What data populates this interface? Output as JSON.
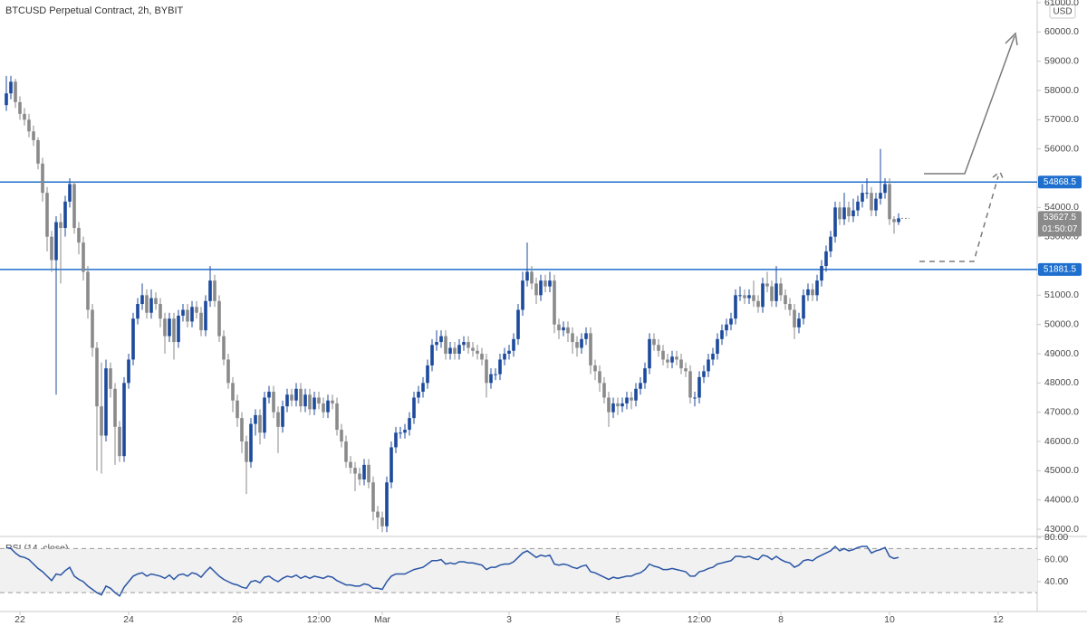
{
  "chart_data": [
    {
      "type": "candlestick",
      "title": "BTCUSD Perpetual Contract, 2h, BYBIT",
      "currency": "USD",
      "up_color": "#1c4a9c",
      "down_color": "#8a8a8a",
      "open": [
        57500,
        57900,
        58300,
        57600,
        57200,
        57000,
        56600,
        56300,
        55500,
        54500,
        53000,
        52200,
        53500,
        53300,
        54200,
        54800,
        53300,
        52800,
        51800,
        50500,
        49200,
        47200,
        46200,
        48500,
        47800,
        46500,
        45500,
        48000,
        48800,
        50200,
        50700,
        51000,
        50400,
        50900,
        50700,
        50200,
        49600,
        50200,
        49400,
        50300,
        50500,
        50100,
        50600,
        50400,
        49800,
        50800,
        51500,
        50800,
        49600,
        48800,
        48000,
        47400,
        46800,
        46000,
        45300,
        46600,
        46900,
        46300,
        47500,
        47700,
        47000,
        46500,
        47200,
        47600,
        47400,
        47800,
        47200,
        47600,
        47100,
        47500,
        47300,
        47000,
        47400,
        47300,
        46400,
        46000,
        45300,
        45100,
        44900,
        44700,
        45200,
        44600,
        43600,
        43400,
        43100,
        44600,
        45800,
        46300,
        46300,
        46400,
        46800,
        47500,
        47700,
        48000,
        48600,
        49300,
        49400,
        49600,
        49000,
        49200,
        49000,
        49300,
        49400,
        49200,
        49100,
        49000,
        48800,
        48000,
        48300,
        48300,
        48800,
        49000,
        49100,
        49500,
        50500,
        51500,
        51800,
        51400,
        51000,
        51500,
        51300,
        51500,
        50000,
        49800,
        49900,
        49700,
        49400,
        49200,
        49500,
        49700,
        48600,
        48400,
        48000,
        47500,
        47000,
        47300,
        47200,
        47300,
        47500,
        47400,
        47800,
        48000,
        48500,
        49500,
        49300,
        49100,
        48800,
        48700,
        48900,
        48800,
        48500,
        48400,
        47500,
        47500,
        48200,
        48400,
        48800,
        49000,
        49500,
        49800,
        50000,
        50200,
        51000,
        51000,
        50900,
        51000,
        50800,
        50600,
        51400,
        51300,
        50800,
        51400,
        51000,
        50700,
        50500,
        49900,
        50200,
        51000,
        51200,
        51000,
        51500,
        52000,
        52500,
        53000,
        54000,
        53600,
        54000,
        53700,
        53900,
        54200,
        54500,
        54500,
        53900,
        54300,
        54500,
        54800,
        53600,
        53500
      ],
      "high": [
        58500,
        58500,
        58400,
        57800,
        57400,
        57200,
        56800,
        56400,
        55700,
        54700,
        53200,
        53700,
        53800,
        54400,
        55000,
        54900,
        53500,
        53000,
        52000,
        50700,
        49400,
        48700,
        48800,
        48700,
        48000,
        46700,
        48200,
        49000,
        50400,
        50900,
        51400,
        51200,
        51200,
        51100,
        50900,
        50400,
        50400,
        50400,
        50500,
        50700,
        50700,
        50800,
        50800,
        50600,
        51000,
        52000,
        51700,
        51000,
        49800,
        49000,
        48200,
        47600,
        47000,
        46200,
        46800,
        47100,
        47100,
        47700,
        47900,
        47900,
        47200,
        47400,
        47800,
        47800,
        48000,
        48000,
        47800,
        47800,
        47700,
        47700,
        47500,
        47600,
        47600,
        47500,
        46600,
        46200,
        45500,
        45300,
        45100,
        45400,
        45400,
        44800,
        43800,
        43600,
        44800,
        46000,
        46500,
        46500,
        46600,
        47000,
        47700,
        47900,
        48200,
        48800,
        49500,
        49800,
        49800,
        49800,
        49400,
        49400,
        49500,
        49600,
        49600,
        49400,
        49300,
        49200,
        49000,
        48500,
        48500,
        49000,
        49200,
        49300,
        49700,
        50700,
        51800,
        52800,
        52000,
        51600,
        51700,
        51700,
        51800,
        51700,
        50200,
        50100,
        50100,
        49900,
        49600,
        49700,
        49900,
        49900,
        48800,
        48600,
        48200,
        47700,
        47500,
        47500,
        47500,
        47700,
        47700,
        48000,
        48200,
        48700,
        49700,
        49700,
        49500,
        49300,
        49000,
        49100,
        49100,
        49000,
        48700,
        48600,
        47700,
        48400,
        48600,
        49000,
        49200,
        49700,
        50000,
        50200,
        50400,
        51200,
        51300,
        51200,
        51200,
        51500,
        51000,
        51600,
        51800,
        51500,
        52000,
        51600,
        51200,
        50900,
        50700,
        50400,
        51200,
        51400,
        51400,
        51700,
        52200,
        52700,
        53200,
        54200,
        54200,
        54500,
        54200,
        54300,
        54400,
        54800,
        55000,
        54700,
        54500,
        56000,
        55000,
        55000,
        53700,
        53800
      ],
      "low": [
        57300,
        57700,
        57400,
        57000,
        56800,
        56400,
        56100,
        55300,
        54200,
        52500,
        51800,
        47600,
        51400,
        53000,
        54000,
        53100,
        52400,
        51500,
        50200,
        48900,
        45000,
        44900,
        46000,
        47500,
        45200,
        45300,
        45300,
        47800,
        48600,
        50000,
        50500,
        50200,
        50200,
        50500,
        49900,
        49000,
        49400,
        48800,
        49200,
        50100,
        49900,
        49900,
        50200,
        49600,
        49600,
        50600,
        50600,
        49400,
        48600,
        47800,
        47000,
        46500,
        45600,
        44200,
        45100,
        46200,
        45900,
        46100,
        47300,
        46800,
        45600,
        46300,
        47000,
        47200,
        47200,
        47000,
        47000,
        46900,
        46900,
        47100,
        46800,
        46800,
        47100,
        46200,
        45800,
        45100,
        44900,
        44300,
        44500,
        44500,
        44400,
        43300,
        43000,
        42900,
        42900,
        44400,
        45600,
        46100,
        46100,
        46200,
        46600,
        47300,
        47500,
        47800,
        48400,
        49100,
        49200,
        48800,
        48800,
        48800,
        48800,
        49100,
        49000,
        48900,
        48800,
        48600,
        47500,
        47800,
        48100,
        48100,
        48600,
        48800,
        48900,
        49300,
        50300,
        51300,
        51200,
        50700,
        50800,
        51100,
        51100,
        49700,
        49500,
        49600,
        49400,
        49000,
        48900,
        49000,
        49300,
        48300,
        48100,
        47700,
        47300,
        46500,
        46800,
        46900,
        47000,
        47100,
        47100,
        47200,
        47600,
        47800,
        48300,
        49100,
        48900,
        48600,
        48500,
        48500,
        48600,
        48300,
        48200,
        47300,
        47200,
        47300,
        48000,
        48200,
        48600,
        48800,
        49300,
        49600,
        49800,
        50000,
        50800,
        50700,
        50700,
        50600,
        50400,
        50400,
        51100,
        50600,
        50600,
        50800,
        50500,
        50300,
        49500,
        49700,
        50000,
        50800,
        50800,
        50800,
        51300,
        51800,
        52300,
        52800,
        53400,
        53400,
        53500,
        53500,
        53700,
        54000,
        54300,
        53700,
        53700,
        54100,
        54300,
        53400,
        53100,
        53400
      ],
      "close": [
        57900,
        58300,
        57600,
        57200,
        57000,
        56600,
        56300,
        55500,
        54500,
        53000,
        52200,
        53500,
        53300,
        54200,
        54800,
        53300,
        52800,
        51800,
        50500,
        49200,
        47200,
        46200,
        48500,
        47800,
        46500,
        45500,
        48000,
        48800,
        50200,
        50700,
        51000,
        50400,
        50900,
        50700,
        50200,
        49600,
        50200,
        49400,
        50300,
        50500,
        50100,
        50600,
        50400,
        49800,
        50800,
        51500,
        50800,
        49600,
        48800,
        48000,
        47400,
        46800,
        46000,
        45300,
        46600,
        46900,
        46300,
        47500,
        47700,
        47000,
        46500,
        47200,
        47600,
        47400,
        47800,
        47200,
        47600,
        47100,
        47500,
        47300,
        47000,
        47400,
        47300,
        46400,
        46000,
        45300,
        45100,
        44900,
        44700,
        45200,
        44600,
        43600,
        43400,
        43100,
        44600,
        45800,
        46300,
        46300,
        46400,
        46800,
        47500,
        47700,
        48000,
        48600,
        49300,
        49400,
        49600,
        49000,
        49200,
        49000,
        49300,
        49400,
        49200,
        49100,
        49000,
        48800,
        48000,
        48300,
        48300,
        48800,
        49000,
        49100,
        49500,
        50500,
        51500,
        51800,
        51400,
        51000,
        51500,
        51300,
        51500,
        50000,
        49800,
        49900,
        49700,
        49400,
        49200,
        49500,
        49700,
        48600,
        48400,
        48000,
        47500,
        47000,
        47300,
        47200,
        47300,
        47500,
        47400,
        47800,
        48000,
        48500,
        49500,
        49300,
        49100,
        48800,
        48700,
        48900,
        48800,
        48500,
        48400,
        47500,
        47500,
        48200,
        48400,
        48800,
        49000,
        49500,
        49800,
        50000,
        50200,
        51000,
        51000,
        50900,
        51000,
        50800,
        50600,
        51400,
        51300,
        50800,
        51400,
        51000,
        50700,
        50500,
        49900,
        50200,
        51000,
        51200,
        51000,
        51500,
        52000,
        52500,
        53000,
        54000,
        53600,
        54000,
        53700,
        53900,
        54200,
        54500,
        54500,
        53900,
        54300,
        54500,
        54800,
        53600,
        53500,
        53627.5
      ],
      "countdown": "01:50:07",
      "levels": [
        54868.5,
        51881.5
      ],
      "level_color": "#1e6fce",
      "ylim": [
        42783,
        61093
      ],
      "yticks": [
        {
          "value": 43000,
          "label": "43000.0"
        },
        {
          "value": 44000,
          "label": "44000.0"
        },
        {
          "value": 45000,
          "label": "45000.0"
        },
        {
          "value": 46000,
          "label": "46000.0"
        },
        {
          "value": 47000,
          "label": "47000.0"
        },
        {
          "value": 48000,
          "label": "48000.0"
        },
        {
          "value": 49000,
          "label": "49000.0"
        },
        {
          "value": 50000,
          "label": "50000.0"
        },
        {
          "value": 51000,
          "label": "51000.0"
        },
        {
          "value": 53000,
          "label": "53000.0"
        },
        {
          "value": 54000,
          "label": "54000.0"
        },
        {
          "value": 56000,
          "label": "56000.0"
        },
        {
          "value": 57000,
          "label": "57000.0"
        },
        {
          "value": 58000,
          "label": "58000.0"
        },
        {
          "value": 59000,
          "label": "59000.0"
        },
        {
          "value": 60000,
          "label": "60000.0"
        },
        {
          "value": 61000,
          "label": "61000.0"
        }
      ],
      "xlim": [
        -1.4,
        227.6
      ],
      "xticks": [
        {
          "value": 3,
          "label": "22"
        },
        {
          "value": 27,
          "label": "24"
        },
        {
          "value": 51,
          "label": "26"
        },
        {
          "value": 69,
          "label": "12:00"
        },
        {
          "value": 83,
          "label": "Mar"
        },
        {
          "value": 111,
          "label": "3"
        },
        {
          "value": 135,
          "label": "5"
        },
        {
          "value": 153,
          "label": "12:00"
        },
        {
          "value": 171,
          "label": "8"
        },
        {
          "value": 195,
          "label": "10"
        },
        {
          "value": 219,
          "label": "12"
        }
      ]
    },
    {
      "type": "line",
      "title": "RSI (14, close)",
      "color": "#2a55a5",
      "values": [
        71,
        70,
        66,
        63,
        62,
        60,
        56,
        52,
        49,
        45,
        41,
        47,
        46,
        50,
        53,
        45,
        42,
        40,
        36,
        33,
        30,
        28,
        36,
        34,
        30,
        27,
        35,
        40,
        45,
        47,
        48,
        45,
        47,
        46,
        45,
        43,
        46,
        42,
        46,
        47,
        45,
        48,
        47,
        44,
        49,
        53,
        49,
        45,
        42,
        40,
        38,
        37,
        35,
        34,
        40,
        41,
        39,
        44,
        45,
        42,
        40,
        43,
        45,
        44,
        46,
        43,
        45,
        43,
        45,
        44,
        43,
        45,
        44,
        41,
        39,
        37,
        37,
        36,
        36,
        38,
        37,
        34,
        34,
        33,
        40,
        45,
        47,
        47,
        47,
        49,
        51,
        52,
        53,
        56,
        59,
        59,
        60,
        56,
        57,
        56,
        58,
        58,
        57,
        57,
        56,
        55,
        51,
        53,
        53,
        55,
        56,
        56,
        58,
        62,
        66,
        68,
        65,
        62,
        64,
        63,
        64,
        56,
        55,
        56,
        55,
        53,
        52,
        54,
        55,
        49,
        48,
        46,
        44,
        42,
        44,
        43,
        44,
        45,
        45,
        47,
        48,
        51,
        56,
        54,
        53,
        51,
        51,
        52,
        51,
        50,
        49,
        45,
        45,
        49,
        50,
        52,
        53,
        56,
        57,
        58,
        59,
        63,
        63,
        62,
        63,
        61,
        60,
        64,
        63,
        60,
        63,
        60,
        58,
        57,
        53,
        55,
        59,
        60,
        59,
        62,
        64,
        66,
        68,
        72,
        68,
        70,
        68,
        69,
        71,
        72,
        72,
        66,
        68,
        69,
        71,
        63,
        61,
        62
      ],
      "band": [
        30,
        70
      ],
      "xlim": [
        -1.4,
        227.6
      ],
      "ylim": [
        12.9,
        80.2
      ],
      "yticks": [
        {
          "value": 40,
          "label": "40.00"
        },
        {
          "value": 60,
          "label": "60.00"
        },
        {
          "value": 80,
          "label": "80.00"
        }
      ]
    }
  ]
}
